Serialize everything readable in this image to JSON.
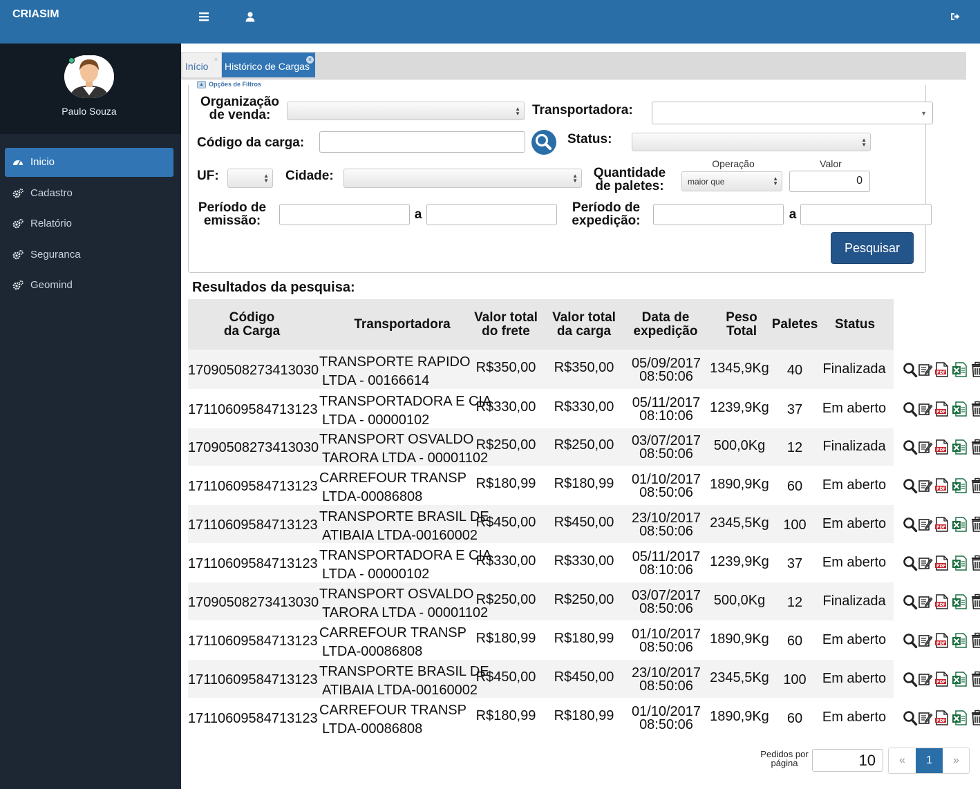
{
  "app": {
    "brand": "CRIASIM"
  },
  "topbar": {
    "menu_icon": "hamburger-icon",
    "user_icon": "user-icon",
    "logout_icon": "logout-icon"
  },
  "profile": {
    "name": "Paulo Souza",
    "status_color": "#39c08a"
  },
  "sidebar": {
    "items": [
      {
        "label": "Inicio",
        "icon": "dashboard-icon",
        "active": true
      },
      {
        "label": "Cadastro",
        "icon": "cogs-icon"
      },
      {
        "label": "Relatório",
        "icon": "cogs-icon"
      },
      {
        "label": "Seguranca",
        "icon": "cogs-icon"
      },
      {
        "label": "Geomind",
        "icon": "cogs-icon"
      }
    ]
  },
  "tabs": [
    {
      "label": "Início",
      "active": false
    },
    {
      "label": "Histórico de Cargas",
      "active": true
    }
  ],
  "filters": {
    "legend": "Opções de Filtros",
    "org_label_1": "Organização",
    "org_label_2": "de venda:",
    "org_value": "",
    "transportadora_label": "Transportadora:",
    "transportadora_value": "",
    "codigo_label": "Código da carga:",
    "codigo_value": "",
    "status_label": "Status:",
    "status_value": "",
    "uf_label": "UF:",
    "uf_value": "",
    "cidade_label": "Cidade:",
    "cidade_value": "",
    "qtd_label_1": "Quantidade",
    "qtd_label_2": "de paletes:",
    "operacao_label": "Operação",
    "operacao_value": "maior que",
    "valor_label": "Valor",
    "valor_value": "0",
    "emissao_label_1": "Período de",
    "emissao_label_2": "emissão:",
    "emissao_sep": "a",
    "expedicao_label_1": "Período de",
    "expedicao_label_2": "expedição:",
    "expedicao_sep": "a",
    "search_button": "Pesquisar"
  },
  "results": {
    "title": "Resultados da pesquisa:",
    "headers": {
      "codigo_1": "Código",
      "codigo_2": "da Carga",
      "transportadora": "Transportadora",
      "frete_1": "Valor total",
      "frete_2": "do frete",
      "carga_1": "Valor total",
      "carga_2": "da carga",
      "data_1": "Data de",
      "data_2": "expedição",
      "peso_1": "Peso",
      "peso_2": "Total",
      "paletes": "Paletes",
      "status": "Status"
    },
    "rows": [
      {
        "codigo": "17090508273413030",
        "transp_1": "TRANSPORTE RAPIDO",
        "transp_2": "LTDA - 00166614",
        "frete": "R$350,00",
        "carga": "R$350,00",
        "data_1": "05/09/2017",
        "data_2": "08:50:06",
        "peso": "1345,9Kg",
        "paletes": "40",
        "status": "Finalizada"
      },
      {
        "codigo": "17110609584713123",
        "transp_1": "TRANSPORTADORA E CIA",
        "transp_2": "LTDA - 00000102",
        "frete": "R$330,00",
        "carga": "R$330,00",
        "data_1": "05/11/2017",
        "data_2": "08:10:06",
        "peso": "1239,9Kg",
        "paletes": "37",
        "status": "Em aberto"
      },
      {
        "codigo": "17090508273413030",
        "transp_1": "TRANSPORT OSVALDO",
        "transp_2": "TARORA LTDA - 00001102",
        "frete": "R$250,00",
        "carga": "R$250,00",
        "data_1": "03/07/2017",
        "data_2": "08:50:06",
        "peso": "500,0Kg",
        "paletes": "12",
        "status": "Finalizada"
      },
      {
        "codigo": "17110609584713123",
        "transp_1": "CARREFOUR TRANSP",
        "transp_2": "LTDA-00086808",
        "frete": "R$180,99",
        "carga": "R$180,99",
        "data_1": "01/10/2017",
        "data_2": "08:50:06",
        "peso": "1890,9Kg",
        "paletes": "60",
        "status": "Em aberto"
      },
      {
        "codigo": "17110609584713123",
        "transp_1": "TRANSPORTE BRASIL DE",
        "transp_2": "ATIBAIA LTDA-00160002",
        "frete": "R$450,00",
        "carga": "R$450,00",
        "data_1": "23/10/2017",
        "data_2": "08:50:06",
        "peso": "2345,5Kg",
        "paletes": "100",
        "status": "Em aberto"
      },
      {
        "codigo": "17110609584713123",
        "transp_1": "TRANSPORTADORA E CIA",
        "transp_2": "LTDA - 00000102",
        "frete": "R$330,00",
        "carga": "R$330,00",
        "data_1": "05/11/2017",
        "data_2": "08:10:06",
        "peso": "1239,9Kg",
        "paletes": "37",
        "status": "Em aberto"
      },
      {
        "codigo": "17090508273413030",
        "transp_1": "TRANSPORT OSVALDO",
        "transp_2": "TARORA LTDA - 00001102",
        "frete": "R$250,00",
        "carga": "R$250,00",
        "data_1": "03/07/2017",
        "data_2": "08:50:06",
        "peso": "500,0Kg",
        "paletes": "12",
        "status": "Finalizada"
      },
      {
        "codigo": "17110609584713123",
        "transp_1": "CARREFOUR TRANSP",
        "transp_2": "LTDA-00086808",
        "frete": "R$180,99",
        "carga": "R$180,99",
        "data_1": "01/10/2017",
        "data_2": "08:50:06",
        "peso": "1890,9Kg",
        "paletes": "60",
        "status": "Em aberto"
      },
      {
        "codigo": "17110609584713123",
        "transp_1": "TRANSPORTE BRASIL DE",
        "transp_2": "ATIBAIA LTDA-00160002",
        "frete": "R$450,00",
        "carga": "R$450,00",
        "data_1": "23/10/2017",
        "data_2": "08:50:06",
        "peso": "2345,5Kg",
        "paletes": "100",
        "status": "Em aberto"
      },
      {
        "codigo": "17110609584713123",
        "transp_1": "CARREFOUR TRANSP",
        "transp_2": "LTDA-00086808",
        "frete": "R$180,99",
        "carga": "R$180,99",
        "data_1": "01/10/2017",
        "data_2": "08:50:06",
        "peso": "1890,9Kg",
        "paletes": "60",
        "status": "Em aberto"
      }
    ],
    "row_actions": [
      "search-icon",
      "edit-icon",
      "pdf-icon",
      "excel-icon",
      "trash-icon"
    ]
  },
  "pagination": {
    "per_page_label_1": "Pedidos por",
    "per_page_label_2": "página",
    "per_page_value": "10",
    "prev": "«",
    "current": "1",
    "next": "»"
  },
  "colors": {
    "primary": "#2a6ea8",
    "sidebar": "#1d2734",
    "active_menu": "#3175b5",
    "button_dark": "#24558a"
  }
}
